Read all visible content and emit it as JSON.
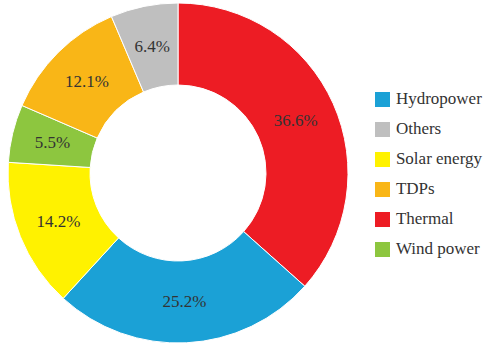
{
  "chart_data": {
    "type": "pie",
    "donut": true,
    "categories": [
      "Thermal",
      "Hydropower",
      "Solar energy",
      "Wind power",
      "TDPs",
      "Others"
    ],
    "values": [
      36.6,
      25.2,
      14.2,
      5.5,
      12.1,
      6.4
    ],
    "value_labels": [
      "36.6%",
      "25.2%",
      "14.2%",
      "5.5%",
      "12.1%",
      "6.4%"
    ],
    "colors": [
      "#ED1C24",
      "#1BA1D6",
      "#FFF200",
      "#8DC63F",
      "#F9B617",
      "#BFBFBF"
    ],
    "data_labels": true,
    "legend": "right"
  }
}
